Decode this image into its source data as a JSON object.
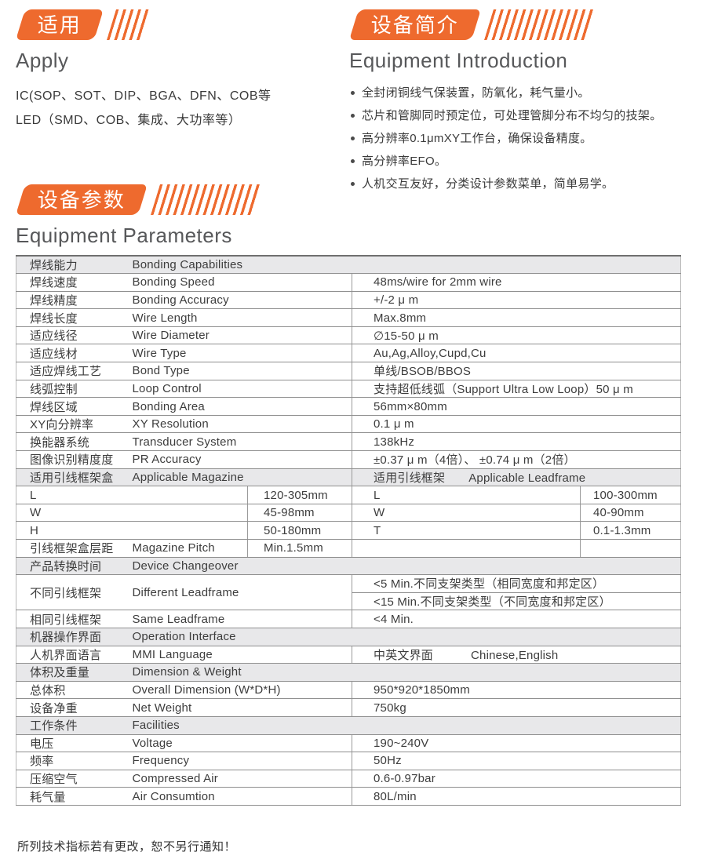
{
  "colors": {
    "accent": "#ee6a2e",
    "header_row_bg": "#e8e8ea",
    "border": "#8f8f8f",
    "text": "#3d3d3d"
  },
  "apply": {
    "badge_zh": "适用",
    "title_en": "Apply",
    "lines": [
      "IC(SOP、SOT、DIP、BGA、DFN、COB等",
      "LED（SMD、COB、集成、大功率等）"
    ]
  },
  "intro": {
    "badge_zh": "设备简介",
    "title_en": "Equipment Introduction",
    "bullets": [
      "全封闭铜线气保装置，防氧化，耗气量小。",
      "芯片和管脚同时预定位，可处理管脚分布不均匀的技架。",
      "高分辨率0.1μmXY工作台，确保设备精度。",
      "高分辨率EFO。",
      "人机交互友好，分类设计参数菜单，简单易学。"
    ]
  },
  "params": {
    "badge_zh": "设备参数",
    "title_en": "Equipment Parameters"
  },
  "table": {
    "rows": [
      {
        "type": "header",
        "zh": "焊线能力",
        "en": "Bonding Capabilities"
      },
      {
        "type": "param",
        "zh": "焊线速度",
        "en": "Bonding Speed",
        "value": "48ms/wire for 2mm wire"
      },
      {
        "type": "param",
        "zh": "焊线精度",
        "en": "Bonding Accuracy",
        "value": "+/-2 μ m"
      },
      {
        "type": "param",
        "zh": "焊线长度",
        "en": "Wire Length",
        "value": "Max.8mm"
      },
      {
        "type": "param",
        "zh": "适应线径",
        "en": "Wire Diameter",
        "value": "∅15-50 μ m"
      },
      {
        "type": "param",
        "zh": "适应线材",
        "en": "Wire Type",
        "value": "Au,Ag,Alloy,Cupd,Cu"
      },
      {
        "type": "param",
        "zh": "适应焊线工艺",
        "en": "Bond Type",
        "value": "单线/BSOB/BBOS"
      },
      {
        "type": "param",
        "zh": "线弧控制",
        "en": "Loop Control",
        "value": "支持超低线弧（Support Ultra Low Loop）50 μ m"
      },
      {
        "type": "param",
        "zh": "焊线区域",
        "en": "Bonding Area",
        "value": "56mm×80mm"
      },
      {
        "type": "param",
        "zh": "XY向分辨率",
        "en": "XY Resolution",
        "value": "0.1 μ m"
      },
      {
        "type": "param",
        "zh": "换能器系统",
        "en": "Transducer System",
        "value": "138kHz"
      },
      {
        "type": "param",
        "zh": "图像识别精度度",
        "en": "PR Accuracy",
        "value": "±0.37 μ m（4倍）、 ±0.74 μ m（2倍）"
      },
      {
        "type": "header2",
        "left_zh": "适用引线框架盒",
        "left_en": "Applicable Magazine",
        "right_zh": "适用引线框架",
        "right_en": "Applicable Leadframe"
      },
      {
        "type": "dims",
        "left_label": "L",
        "left_value": "120-305mm",
        "right_label": "L",
        "right_value": "100-300mm"
      },
      {
        "type": "dims",
        "left_label": "W",
        "left_value": "45-98mm",
        "right_label": "W",
        "right_value": "40-90mm"
      },
      {
        "type": "dims",
        "left_label": "H",
        "left_value": "50-180mm",
        "right_label": "T",
        "right_value": "0.1-1.3mm"
      },
      {
        "type": "pitch",
        "zh": "引线框架盒层距",
        "en": "Magazine Pitch",
        "value": "Min.1.5mm"
      },
      {
        "type": "header",
        "zh": "产品转换时间",
        "en": "Device Changeover"
      },
      {
        "type": "param2",
        "zh": "不同引线框架",
        "en": "Different Leadframe",
        "value": "<5 Min.不同支架类型（相同宽度和邦定区）",
        "value2": "<15 Min.不同支架类型（不同宽度和邦定区）"
      },
      {
        "type": "param",
        "zh": "相同引线框架",
        "en": "Same Leadframe",
        "value": "<4 Min."
      },
      {
        "type": "header",
        "zh": "机器操作界面",
        "en": "Operation Interface"
      },
      {
        "type": "mmi",
        "zh": "人机界面语言",
        "en": "MMI Language",
        "value_zh": "中英文界面",
        "value_en": "Chinese,English"
      },
      {
        "type": "header",
        "zh": "体积及重量",
        "en": "Dimension & Weight"
      },
      {
        "type": "param",
        "zh": "总体积",
        "en": "Overall Dimension (W*D*H)",
        "value": "950*920*1850mm"
      },
      {
        "type": "param",
        "zh": "设备净重",
        "en": "Net Weight",
        "value": "750kg"
      },
      {
        "type": "header",
        "zh": "工作条件",
        "en": "Facilities"
      },
      {
        "type": "param",
        "zh": "电压",
        "en": "Voltage",
        "value": "190~240V"
      },
      {
        "type": "param",
        "zh": "频率",
        "en": "Frequency",
        "value": "50Hz"
      },
      {
        "type": "param",
        "zh": "压缩空气",
        "en": "Compressed Air",
        "value": "0.6-0.97bar"
      },
      {
        "type": "param",
        "zh": "耗气量",
        "en": "Air Consumtion",
        "value": "80L/min"
      }
    ]
  },
  "footer": {
    "note": "所列技术指标若有更改，恕不另行通知！"
  }
}
